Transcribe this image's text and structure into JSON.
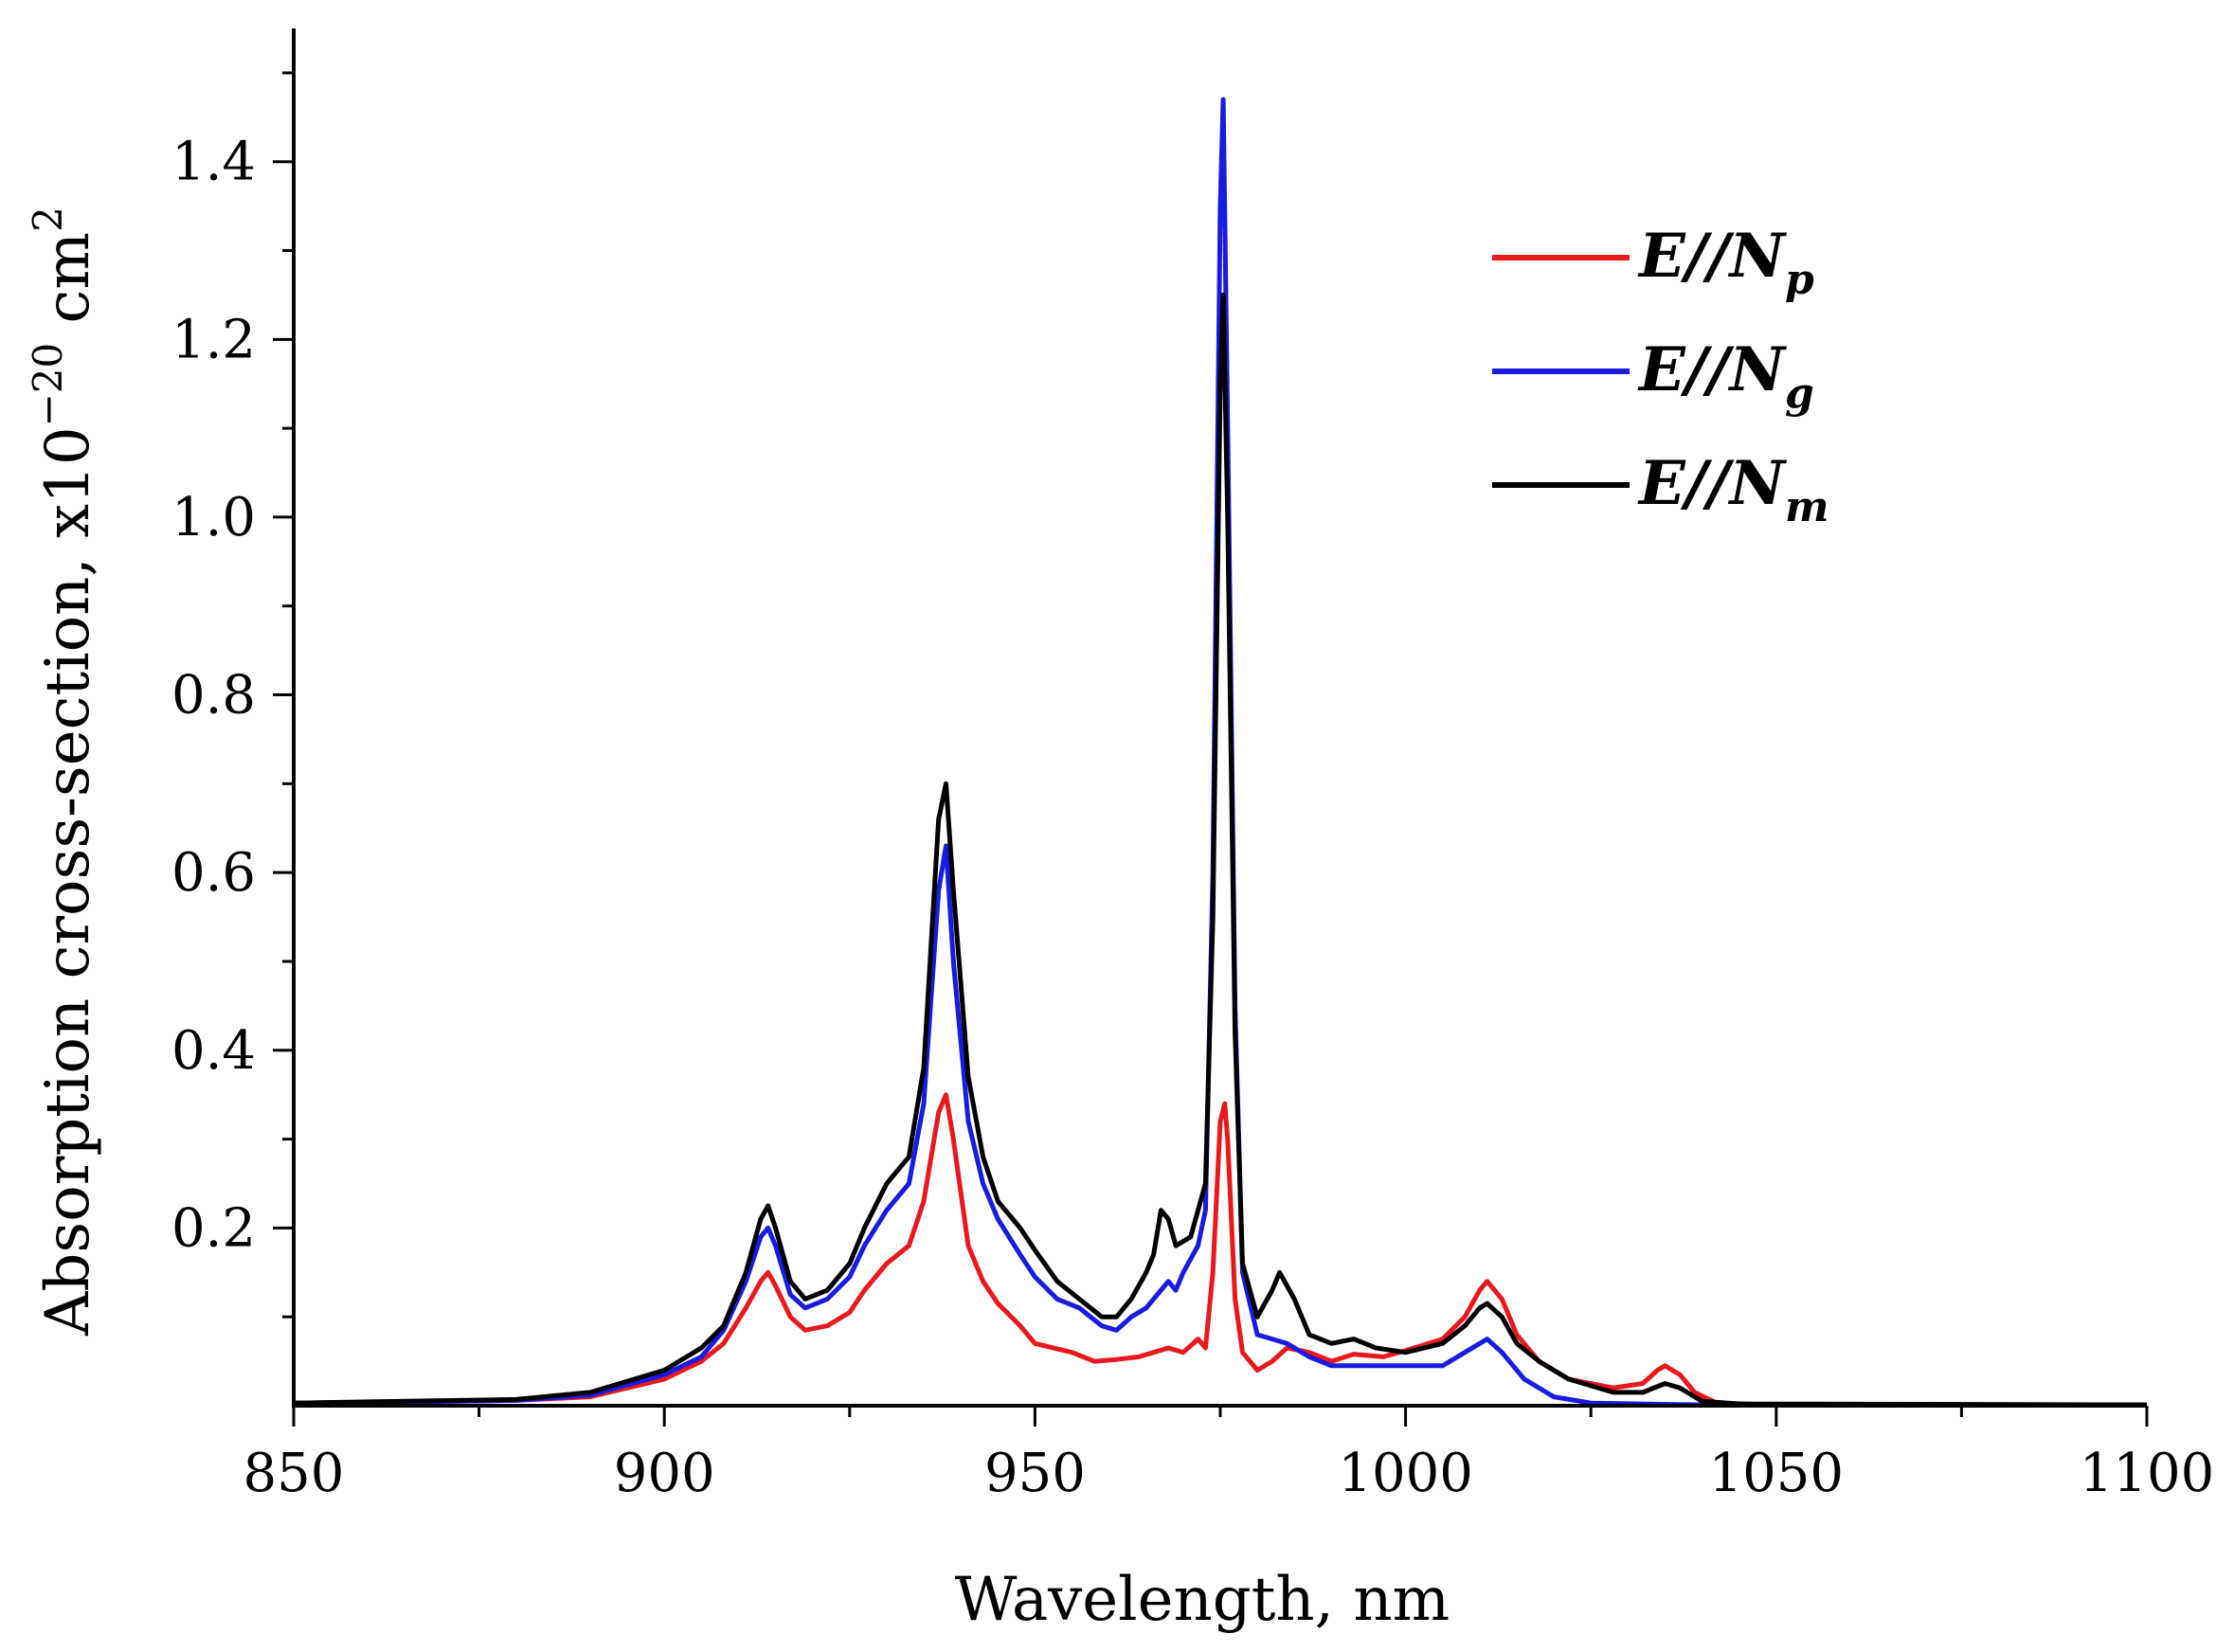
{
  "chart_data": {
    "type": "line",
    "title": "",
    "xlabel": "Wavelength, nm",
    "ylabel": {
      "text": "Absorption cross-section, x10",
      "exponent": "−20",
      "unit": " cm",
      "unit_exponent": "2"
    },
    "xlim": [
      850,
      1100
    ],
    "ylim": [
      0,
      1.55
    ],
    "x_ticks": [
      850,
      900,
      950,
      1000,
      1050,
      1100
    ],
    "x_tick_labels": [
      "850",
      "900",
      "950",
      "1000",
      "1050",
      "1100"
    ],
    "y_ticks": [
      0.2,
      0.4,
      0.6,
      0.8,
      1.0,
      1.2,
      1.4
    ],
    "y_tick_labels": [
      "0.2",
      "0.4",
      "0.6",
      "0.8",
      "1.0",
      "1.2",
      "1.4"
    ],
    "grid": false,
    "legend_position": "top-right",
    "series": [
      {
        "name": "E//Np",
        "legend_main": "E//N",
        "legend_sub": "p",
        "color": "#e8191d",
        "points": [
          [
            850,
            0.003
          ],
          [
            880,
            0.006
          ],
          [
            890,
            0.01
          ],
          [
            900,
            0.03
          ],
          [
            905,
            0.05
          ],
          [
            908,
            0.07
          ],
          [
            911,
            0.11
          ],
          [
            913,
            0.14
          ],
          [
            914,
            0.15
          ],
          [
            915,
            0.135
          ],
          [
            917,
            0.1
          ],
          [
            919,
            0.085
          ],
          [
            922,
            0.09
          ],
          [
            925,
            0.105
          ],
          [
            927,
            0.13
          ],
          [
            930,
            0.16
          ],
          [
            933,
            0.18
          ],
          [
            935,
            0.23
          ],
          [
            937,
            0.33
          ],
          [
            938,
            0.35
          ],
          [
            939,
            0.3
          ],
          [
            941,
            0.18
          ],
          [
            943,
            0.14
          ],
          [
            945,
            0.115
          ],
          [
            948,
            0.09
          ],
          [
            950,
            0.07
          ],
          [
            955,
            0.06
          ],
          [
            958,
            0.05
          ],
          [
            961,
            0.052
          ],
          [
            964,
            0.055
          ],
          [
            966,
            0.06
          ],
          [
            968,
            0.065
          ],
          [
            970,
            0.06
          ],
          [
            972,
            0.075
          ],
          [
            973,
            0.065
          ],
          [
            974,
            0.15
          ],
          [
            975,
            0.32
          ],
          [
            975.6,
            0.34
          ],
          [
            976,
            0.3
          ],
          [
            977,
            0.12
          ],
          [
            978,
            0.06
          ],
          [
            980,
            0.04
          ],
          [
            982,
            0.05
          ],
          [
            984,
            0.065
          ],
          [
            987,
            0.06
          ],
          [
            990,
            0.05
          ],
          [
            993,
            0.058
          ],
          [
            997,
            0.055
          ],
          [
            1000,
            0.062
          ],
          [
            1005,
            0.075
          ],
          [
            1008,
            0.1
          ],
          [
            1010,
            0.13
          ],
          [
            1011,
            0.14
          ],
          [
            1013,
            0.12
          ],
          [
            1015,
            0.08
          ],
          [
            1018,
            0.05
          ],
          [
            1022,
            0.03
          ],
          [
            1028,
            0.02
          ],
          [
            1032,
            0.025
          ],
          [
            1034,
            0.04
          ],
          [
            1035,
            0.045
          ],
          [
            1037,
            0.035
          ],
          [
            1039,
            0.015
          ],
          [
            1042,
            0.003
          ],
          [
            1050,
            0.001
          ],
          [
            1100,
            0.001
          ]
        ]
      },
      {
        "name": "E//Ng",
        "legend_main": "E//N",
        "legend_sub": "g",
        "color": "#1a1ae0",
        "points": [
          [
            850,
            0.003
          ],
          [
            880,
            0.006
          ],
          [
            890,
            0.012
          ],
          [
            900,
            0.035
          ],
          [
            905,
            0.055
          ],
          [
            908,
            0.085
          ],
          [
            911,
            0.14
          ],
          [
            913,
            0.19
          ],
          [
            914,
            0.2
          ],
          [
            915,
            0.18
          ],
          [
            917,
            0.125
          ],
          [
            919,
            0.11
          ],
          [
            922,
            0.12
          ],
          [
            925,
            0.145
          ],
          [
            927,
            0.18
          ],
          [
            930,
            0.22
          ],
          [
            933,
            0.25
          ],
          [
            935,
            0.34
          ],
          [
            937,
            0.58
          ],
          [
            938,
            0.63
          ],
          [
            939,
            0.5
          ],
          [
            941,
            0.32
          ],
          [
            943,
            0.25
          ],
          [
            945,
            0.21
          ],
          [
            948,
            0.17
          ],
          [
            950,
            0.145
          ],
          [
            953,
            0.12
          ],
          [
            956,
            0.11
          ],
          [
            959,
            0.09
          ],
          [
            961,
            0.085
          ],
          [
            963,
            0.1
          ],
          [
            965,
            0.11
          ],
          [
            967,
            0.13
          ],
          [
            968,
            0.14
          ],
          [
            969,
            0.13
          ],
          [
            970,
            0.15
          ],
          [
            972,
            0.18
          ],
          [
            973,
            0.22
          ],
          [
            974,
            0.6
          ],
          [
            975,
            1.35
          ],
          [
            975.4,
            1.47
          ],
          [
            976,
            1.1
          ],
          [
            977,
            0.45
          ],
          [
            978,
            0.15
          ],
          [
            980,
            0.08
          ],
          [
            982,
            0.075
          ],
          [
            984,
            0.07
          ],
          [
            987,
            0.055
          ],
          [
            990,
            0.045
          ],
          [
            995,
            0.045
          ],
          [
            1000,
            0.045
          ],
          [
            1005,
            0.045
          ],
          [
            1008,
            0.06
          ],
          [
            1011,
            0.075
          ],
          [
            1013,
            0.06
          ],
          [
            1016,
            0.03
          ],
          [
            1020,
            0.01
          ],
          [
            1025,
            0.003
          ],
          [
            1040,
            0.001
          ],
          [
            1100,
            0.001
          ]
        ]
      },
      {
        "name": "E//Nm",
        "legend_main": "E//N",
        "legend_sub": "m",
        "color": "#000000",
        "points": [
          [
            850,
            0.003
          ],
          [
            880,
            0.007
          ],
          [
            890,
            0.015
          ],
          [
            900,
            0.04
          ],
          [
            905,
            0.065
          ],
          [
            908,
            0.09
          ],
          [
            911,
            0.15
          ],
          [
            913,
            0.21
          ],
          [
            914,
            0.225
          ],
          [
            915,
            0.2
          ],
          [
            917,
            0.14
          ],
          [
            919,
            0.12
          ],
          [
            922,
            0.13
          ],
          [
            925,
            0.16
          ],
          [
            927,
            0.2
          ],
          [
            930,
            0.25
          ],
          [
            933,
            0.28
          ],
          [
            935,
            0.38
          ],
          [
            937,
            0.66
          ],
          [
            938,
            0.7
          ],
          [
            939,
            0.58
          ],
          [
            941,
            0.37
          ],
          [
            943,
            0.28
          ],
          [
            945,
            0.23
          ],
          [
            948,
            0.2
          ],
          [
            950,
            0.175
          ],
          [
            953,
            0.14
          ],
          [
            956,
            0.12
          ],
          [
            959,
            0.1
          ],
          [
            961,
            0.1
          ],
          [
            963,
            0.12
          ],
          [
            965,
            0.15
          ],
          [
            966,
            0.17
          ],
          [
            967,
            0.22
          ],
          [
            968,
            0.21
          ],
          [
            969,
            0.18
          ],
          [
            971,
            0.19
          ],
          [
            973,
            0.25
          ],
          [
            974,
            0.55
          ],
          [
            975,
            1.15
          ],
          [
            975.4,
            1.25
          ],
          [
            976,
            1.0
          ],
          [
            977,
            0.42
          ],
          [
            978,
            0.16
          ],
          [
            980,
            0.1
          ],
          [
            982,
            0.13
          ],
          [
            983,
            0.15
          ],
          [
            985,
            0.12
          ],
          [
            987,
            0.08
          ],
          [
            990,
            0.07
          ],
          [
            993,
            0.075
          ],
          [
            996,
            0.065
          ],
          [
            1000,
            0.06
          ],
          [
            1005,
            0.07
          ],
          [
            1008,
            0.09
          ],
          [
            1010,
            0.11
          ],
          [
            1011,
            0.115
          ],
          [
            1013,
            0.1
          ],
          [
            1015,
            0.07
          ],
          [
            1018,
            0.05
          ],
          [
            1022,
            0.03
          ],
          [
            1028,
            0.015
          ],
          [
            1032,
            0.015
          ],
          [
            1035,
            0.025
          ],
          [
            1037,
            0.02
          ],
          [
            1040,
            0.005
          ],
          [
            1045,
            0.002
          ],
          [
            1100,
            0.001
          ]
        ]
      }
    ]
  }
}
